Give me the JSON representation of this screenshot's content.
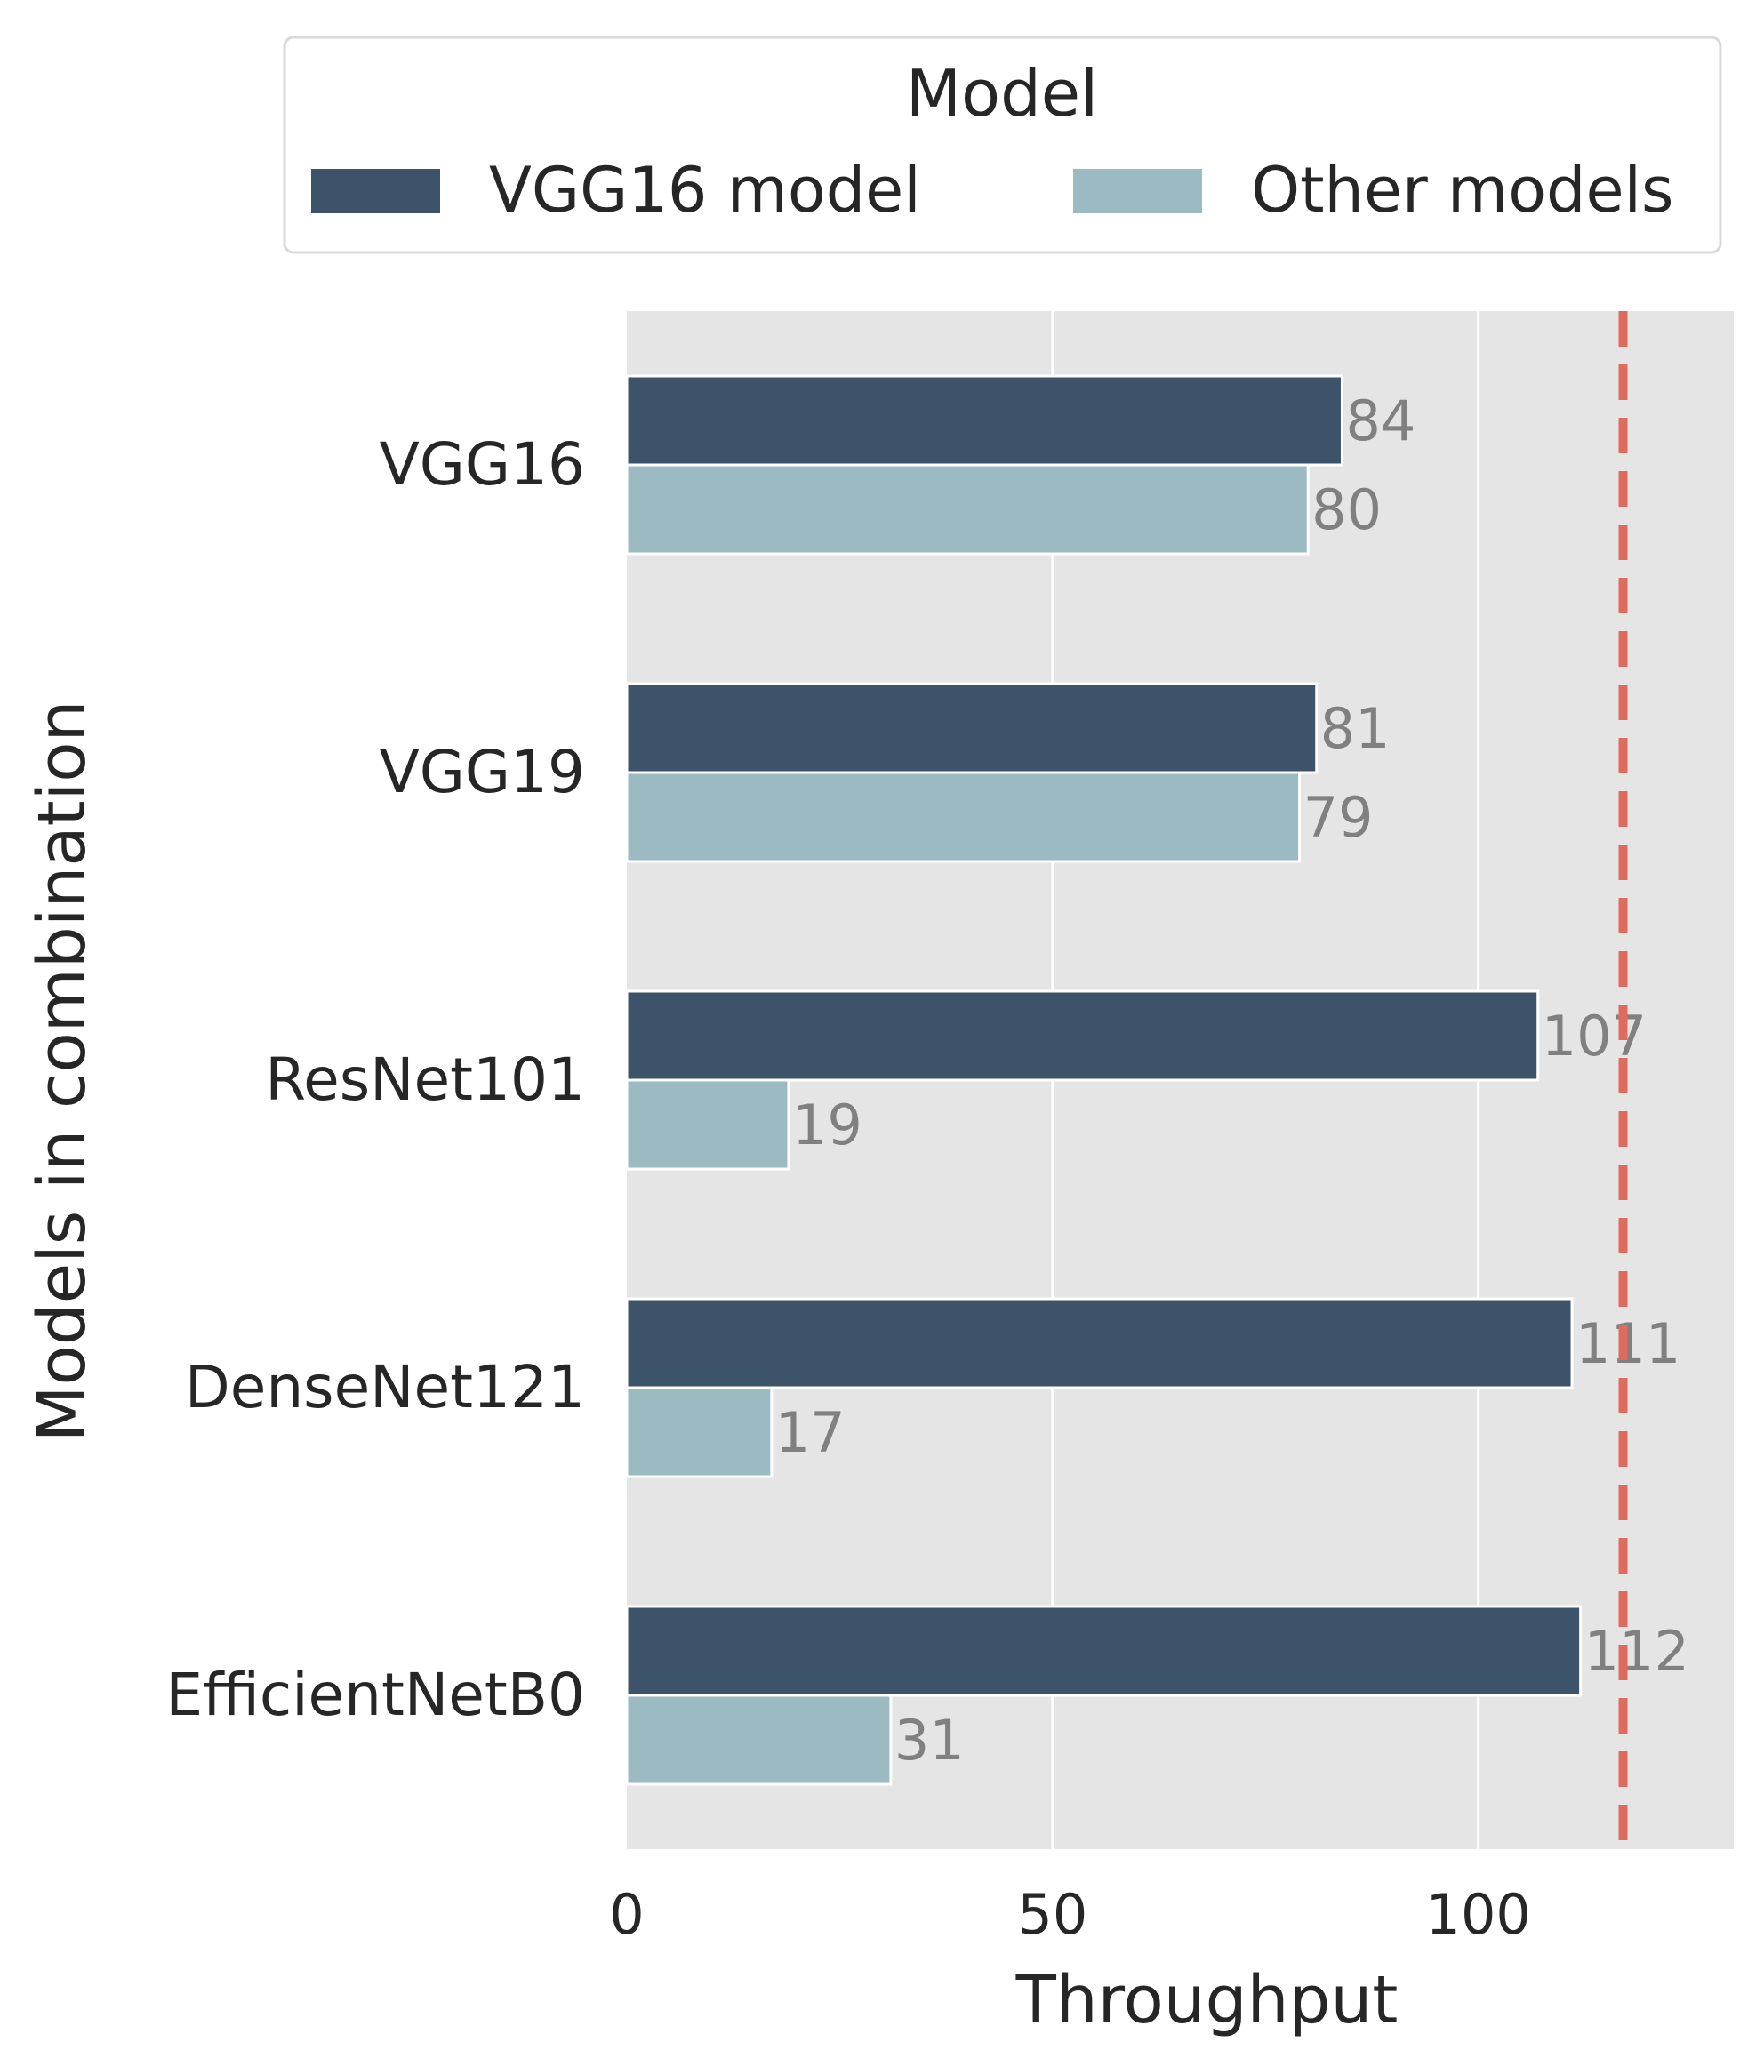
{
  "chart_data": {
    "type": "bar",
    "orientation": "horizontal",
    "title": "",
    "xlabel": "Throughput",
    "ylabel": "Models in combination",
    "categories": [
      "VGG16",
      "VGG19",
      "ResNet101",
      "DenseNet121",
      "EfficientNetB0"
    ],
    "series": [
      {
        "name": "VGG16 model",
        "values": [
          84,
          81,
          107,
          111,
          112
        ],
        "color": "#3c5369"
      },
      {
        "name": "Other models",
        "values": [
          80,
          79,
          19,
          17,
          31
        ],
        "color": "#9bbac1"
      }
    ],
    "xlim": [
      0,
      130
    ],
    "xticks": [
      0,
      50,
      100
    ],
    "grid": true,
    "reference_line": {
      "value": 117,
      "style": "dashed",
      "color": "#e06b5d"
    },
    "legend": {
      "title": "Model",
      "placement": "top",
      "columns": 2
    },
    "label_color": "#808080",
    "plot_background": "#e5e5e5"
  }
}
